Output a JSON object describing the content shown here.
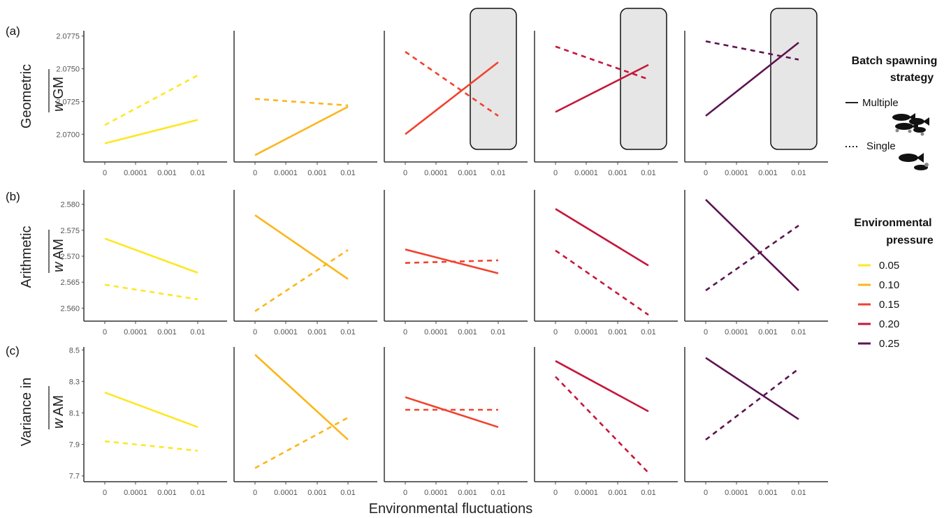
{
  "figure": {
    "xlabel": "Environmental fluctuations",
    "x_ticks": [
      "0",
      "0.0001",
      "0.001",
      "0.01"
    ]
  },
  "rows": [
    {
      "letter": "(a)",
      "label_line1": "Geometric",
      "label_var": "w",
      "label_sub": "GM",
      "yticks": [
        "2.0775",
        "2.0750",
        "2.0725",
        "2.0700"
      ],
      "yrange": [
        2.0682,
        2.0778
      ]
    },
    {
      "letter": "(b)",
      "label_line1": "Arithmetic",
      "label_var": "w",
      "label_sub": "AM",
      "yticks": [
        "2.580",
        "2.575",
        "2.570",
        "2.565",
        "2.560"
      ],
      "yrange": [
        2.5583,
        2.5825
      ]
    },
    {
      "letter": "(c)",
      "label_line1": "Variance in",
      "label_var": "w",
      "label_sub": "AM",
      "yticks": [
        "8.5",
        "8.3",
        "8.1",
        "7.9",
        "7.7"
      ],
      "yrange": [
        7.69,
        8.51
      ]
    }
  ],
  "legend": {
    "strategy_title_line1": "Batch spawning",
    "strategy_title_line2": "strategy",
    "strategy_items": [
      {
        "label": "Multiple",
        "dash": "solid",
        "fish_icon": "fish-group-icon"
      },
      {
        "label": "Single",
        "dash": "dashed",
        "fish_icon": "fish-single-icon"
      }
    ],
    "pressure_title_line1": "Environmental",
    "pressure_title_line2": "pressure",
    "pressure_items": [
      {
        "label": "0.05",
        "color": "#fde725"
      },
      {
        "label": "0.10",
        "color": "#fbb61a"
      },
      {
        "label": "0.15",
        "color": "#f1422e"
      },
      {
        "label": "0.20",
        "color": "#c5173a"
      },
      {
        "label": "0.25",
        "color": "#5c1451"
      }
    ]
  },
  "chart_data": [
    {
      "type": "line",
      "row": "a",
      "title": "",
      "xlabel": "Environmental fluctuations",
      "ylabel": "Geometric w GM",
      "x": [
        "0",
        "0.01"
      ],
      "panels": [
        {
          "pressure": "0.05",
          "color": "#fde725",
          "highlight": false,
          "series": [
            {
              "name": "Multiple",
              "values": [
                2.0693,
                2.0711
              ]
            },
            {
              "name": "Single",
              "values": [
                2.0707,
                2.0745
              ]
            }
          ]
        },
        {
          "pressure": "0.10",
          "color": "#fbb61a",
          "highlight": false,
          "series": [
            {
              "name": "Multiple",
              "values": [
                2.0684,
                2.0721
              ]
            },
            {
              "name": "Single",
              "values": [
                2.0727,
                2.0722
              ]
            }
          ]
        },
        {
          "pressure": "0.15",
          "color": "#f1422e",
          "highlight": true,
          "series": [
            {
              "name": "Multiple",
              "values": [
                2.07,
                2.0755
              ]
            },
            {
              "name": "Single",
              "values": [
                2.0763,
                2.0714
              ]
            }
          ]
        },
        {
          "pressure": "0.20",
          "color": "#c5173a",
          "highlight": true,
          "series": [
            {
              "name": "Multiple",
              "values": [
                2.0717,
                2.0753
              ]
            },
            {
              "name": "Single",
              "values": [
                2.0767,
                2.0742
              ]
            }
          ]
        },
        {
          "pressure": "0.25",
          "color": "#5c1451",
          "highlight": true,
          "series": [
            {
              "name": "Multiple",
              "values": [
                2.0714,
                2.077
              ]
            },
            {
              "name": "Single",
              "values": [
                2.0771,
                2.0757
              ]
            }
          ]
        }
      ]
    },
    {
      "type": "line",
      "row": "b",
      "title": "",
      "xlabel": "Environmental fluctuations",
      "ylabel": "Arithmetic w AM",
      "x": [
        "0",
        "0.01"
      ],
      "panels": [
        {
          "pressure": "0.05",
          "color": "#fde725",
          "highlight": false,
          "series": [
            {
              "name": "Multiple",
              "values": [
                2.5734,
                2.5668
              ]
            },
            {
              "name": "Single",
              "values": [
                2.5645,
                2.5617
              ]
            }
          ]
        },
        {
          "pressure": "0.10",
          "color": "#fbb61a",
          "highlight": false,
          "series": [
            {
              "name": "Multiple",
              "values": [
                2.5779,
                2.5656
              ]
            },
            {
              "name": "Single",
              "values": [
                2.5594,
                2.5712
              ]
            }
          ]
        },
        {
          "pressure": "0.15",
          "color": "#f1422e",
          "highlight": false,
          "series": [
            {
              "name": "Multiple",
              "values": [
                2.5713,
                2.5667
              ]
            },
            {
              "name": "Single",
              "values": [
                2.5687,
                2.5692
              ]
            }
          ]
        },
        {
          "pressure": "0.20",
          "color": "#c5173a",
          "highlight": false,
          "series": [
            {
              "name": "Multiple",
              "values": [
                2.5791,
                2.5682
              ]
            },
            {
              "name": "Single",
              "values": [
                2.5711,
                2.5587
              ]
            }
          ]
        },
        {
          "pressure": "0.25",
          "color": "#5c1451",
          "highlight": false,
          "series": [
            {
              "name": "Multiple",
              "values": [
                2.5809,
                2.5634
              ]
            },
            {
              "name": "Single",
              "values": [
                2.5634,
                2.5759
              ]
            }
          ]
        }
      ]
    },
    {
      "type": "line",
      "row": "c",
      "title": "",
      "xlabel": "Environmental fluctuations",
      "ylabel": "Variance in w AM",
      "x": [
        "0",
        "0.01"
      ],
      "panels": [
        {
          "pressure": "0.05",
          "color": "#fde725",
          "highlight": false,
          "series": [
            {
              "name": "Multiple",
              "values": [
                8.23,
                8.01
              ]
            },
            {
              "name": "Single",
              "values": [
                7.92,
                7.86
              ]
            }
          ]
        },
        {
          "pressure": "0.10",
          "color": "#fbb61a",
          "highlight": false,
          "series": [
            {
              "name": "Multiple",
              "values": [
                8.47,
                7.93
              ]
            },
            {
              "name": "Single",
              "values": [
                7.75,
                8.07
              ]
            }
          ]
        },
        {
          "pressure": "0.15",
          "color": "#f1422e",
          "highlight": false,
          "series": [
            {
              "name": "Multiple",
              "values": [
                8.2,
                8.01
              ]
            },
            {
              "name": "Single",
              "values": [
                8.12,
                8.12
              ]
            }
          ]
        },
        {
          "pressure": "0.20",
          "color": "#c5173a",
          "highlight": false,
          "series": [
            {
              "name": "Multiple",
              "values": [
                8.43,
                8.11
              ]
            },
            {
              "name": "Single",
              "values": [
                8.33,
                7.72
              ]
            }
          ]
        },
        {
          "pressure": "0.25",
          "color": "#5c1451",
          "highlight": false,
          "series": [
            {
              "name": "Multiple",
              "values": [
                8.45,
                8.06
              ]
            },
            {
              "name": "Single",
              "values": [
                7.93,
                8.38
              ]
            }
          ]
        }
      ]
    }
  ]
}
